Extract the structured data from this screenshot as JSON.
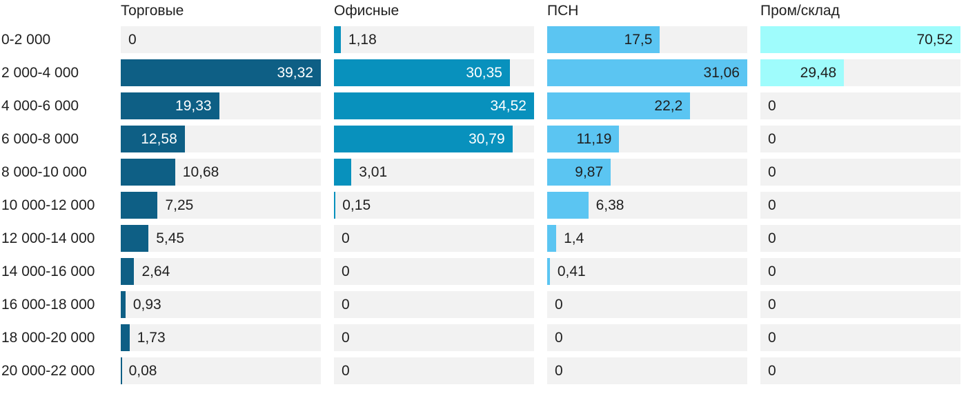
{
  "chart_data": {
    "type": "bar",
    "orientation": "horizontal",
    "title": "",
    "xlabel": "",
    "ylabel": "",
    "grid": false,
    "legend_position": "column-headers-top",
    "scaling": "each column scaled independently to its own max value",
    "value_decimal_separator": ",",
    "categories": [
      "0-2 000",
      "2 000-4 000",
      "4 000-6 000",
      "6 000-8 000",
      "8 000-10 000",
      "10 000-12 000",
      "12 000-14 000",
      "14 000-16 000",
      "16 000-18 000",
      "18 000-20 000",
      "20 000-22 000"
    ],
    "series": [
      {
        "name": "Торговые",
        "color": "#0e5f85",
        "inside_label_color": "#ffffff",
        "max": 39.32,
        "values": [
          0,
          39.32,
          19.33,
          12.58,
          10.68,
          7.25,
          5.45,
          2.64,
          0.93,
          1.73,
          0.08
        ],
        "labels": [
          "0",
          "39,32",
          "19,33",
          "12,58",
          "10,68",
          "7,25",
          "5,45",
          "2,64",
          "0,93",
          "1,73",
          "0,08"
        ]
      },
      {
        "name": "Офисные",
        "color": "#0891bd",
        "inside_label_color": "#ffffff",
        "max": 34.52,
        "values": [
          1.18,
          30.35,
          34.52,
          30.79,
          3.01,
          0.15,
          0,
          0,
          0,
          0,
          0
        ],
        "labels": [
          "1,18",
          "30,35",
          "34,52",
          "30,79",
          "3,01",
          "0,15",
          "0",
          "0",
          "0",
          "0",
          "0"
        ]
      },
      {
        "name": "ПСН",
        "color": "#5bc5f2",
        "inside_label_color": "#1f1f1f",
        "max": 31.06,
        "values": [
          17.5,
          31.06,
          22.2,
          11.19,
          9.87,
          6.38,
          1.4,
          0.41,
          0,
          0,
          0
        ],
        "labels": [
          "17,5",
          "31,06",
          "22,2",
          "11,19",
          "9,87",
          "6,38",
          "1,4",
          "0,41",
          "0",
          "0",
          "0"
        ]
      },
      {
        "name": "Пром/склад",
        "color": "#9ffcfc",
        "inside_label_color": "#1f1f1f",
        "max": 70.52,
        "values": [
          70.52,
          29.48,
          0,
          0,
          0,
          0,
          0,
          0,
          0,
          0,
          0
        ],
        "labels": [
          "70,52",
          "29,48",
          "0",
          "0",
          "0",
          "0",
          "0",
          "0",
          "0",
          "0",
          "0"
        ]
      }
    ],
    "layout_colors": {
      "cell_background": "#f2f2f2",
      "text_color": "#1f1f1f",
      "page_background": "#ffffff"
    }
  }
}
